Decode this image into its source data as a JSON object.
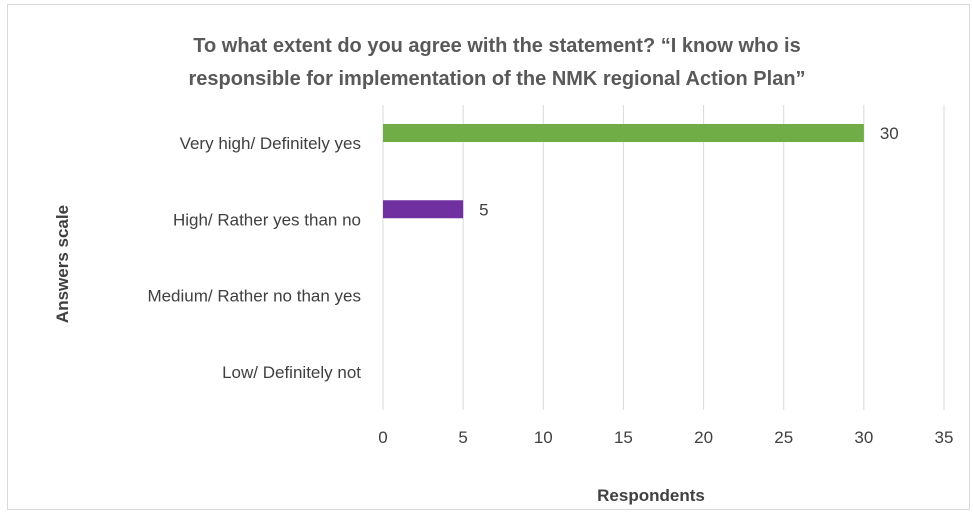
{
  "chart_data": {
    "type": "bar",
    "orientation": "horizontal",
    "title_lines": [
      "To what extent do you agree with the statement?  “I know who is",
      "responsible for implementation of  the NMK regional Action Plan”"
    ],
    "xlabel": "Respondents",
    "ylabel": "Answers scale",
    "categories": [
      "Very high/ Definitely yes",
      "High/ Rather yes than no",
      "Medium/ Rather no than yes",
      "Low/ Definitely not"
    ],
    "values": [
      30,
      5,
      0,
      0
    ],
    "data_labels": [
      "30",
      "5",
      "",
      ""
    ],
    "bar_colors": [
      "#70ad47",
      "#7030a0",
      "#4472c4",
      "#ed7d31"
    ],
    "xlim": [
      0,
      35
    ],
    "xticks": [
      0,
      5,
      10,
      15,
      20,
      25,
      30,
      35
    ],
    "xtick_labels": [
      "0",
      "5",
      "10",
      "15",
      "20",
      "25",
      "30",
      "35"
    ],
    "grid": "vertical",
    "legend": "none"
  }
}
